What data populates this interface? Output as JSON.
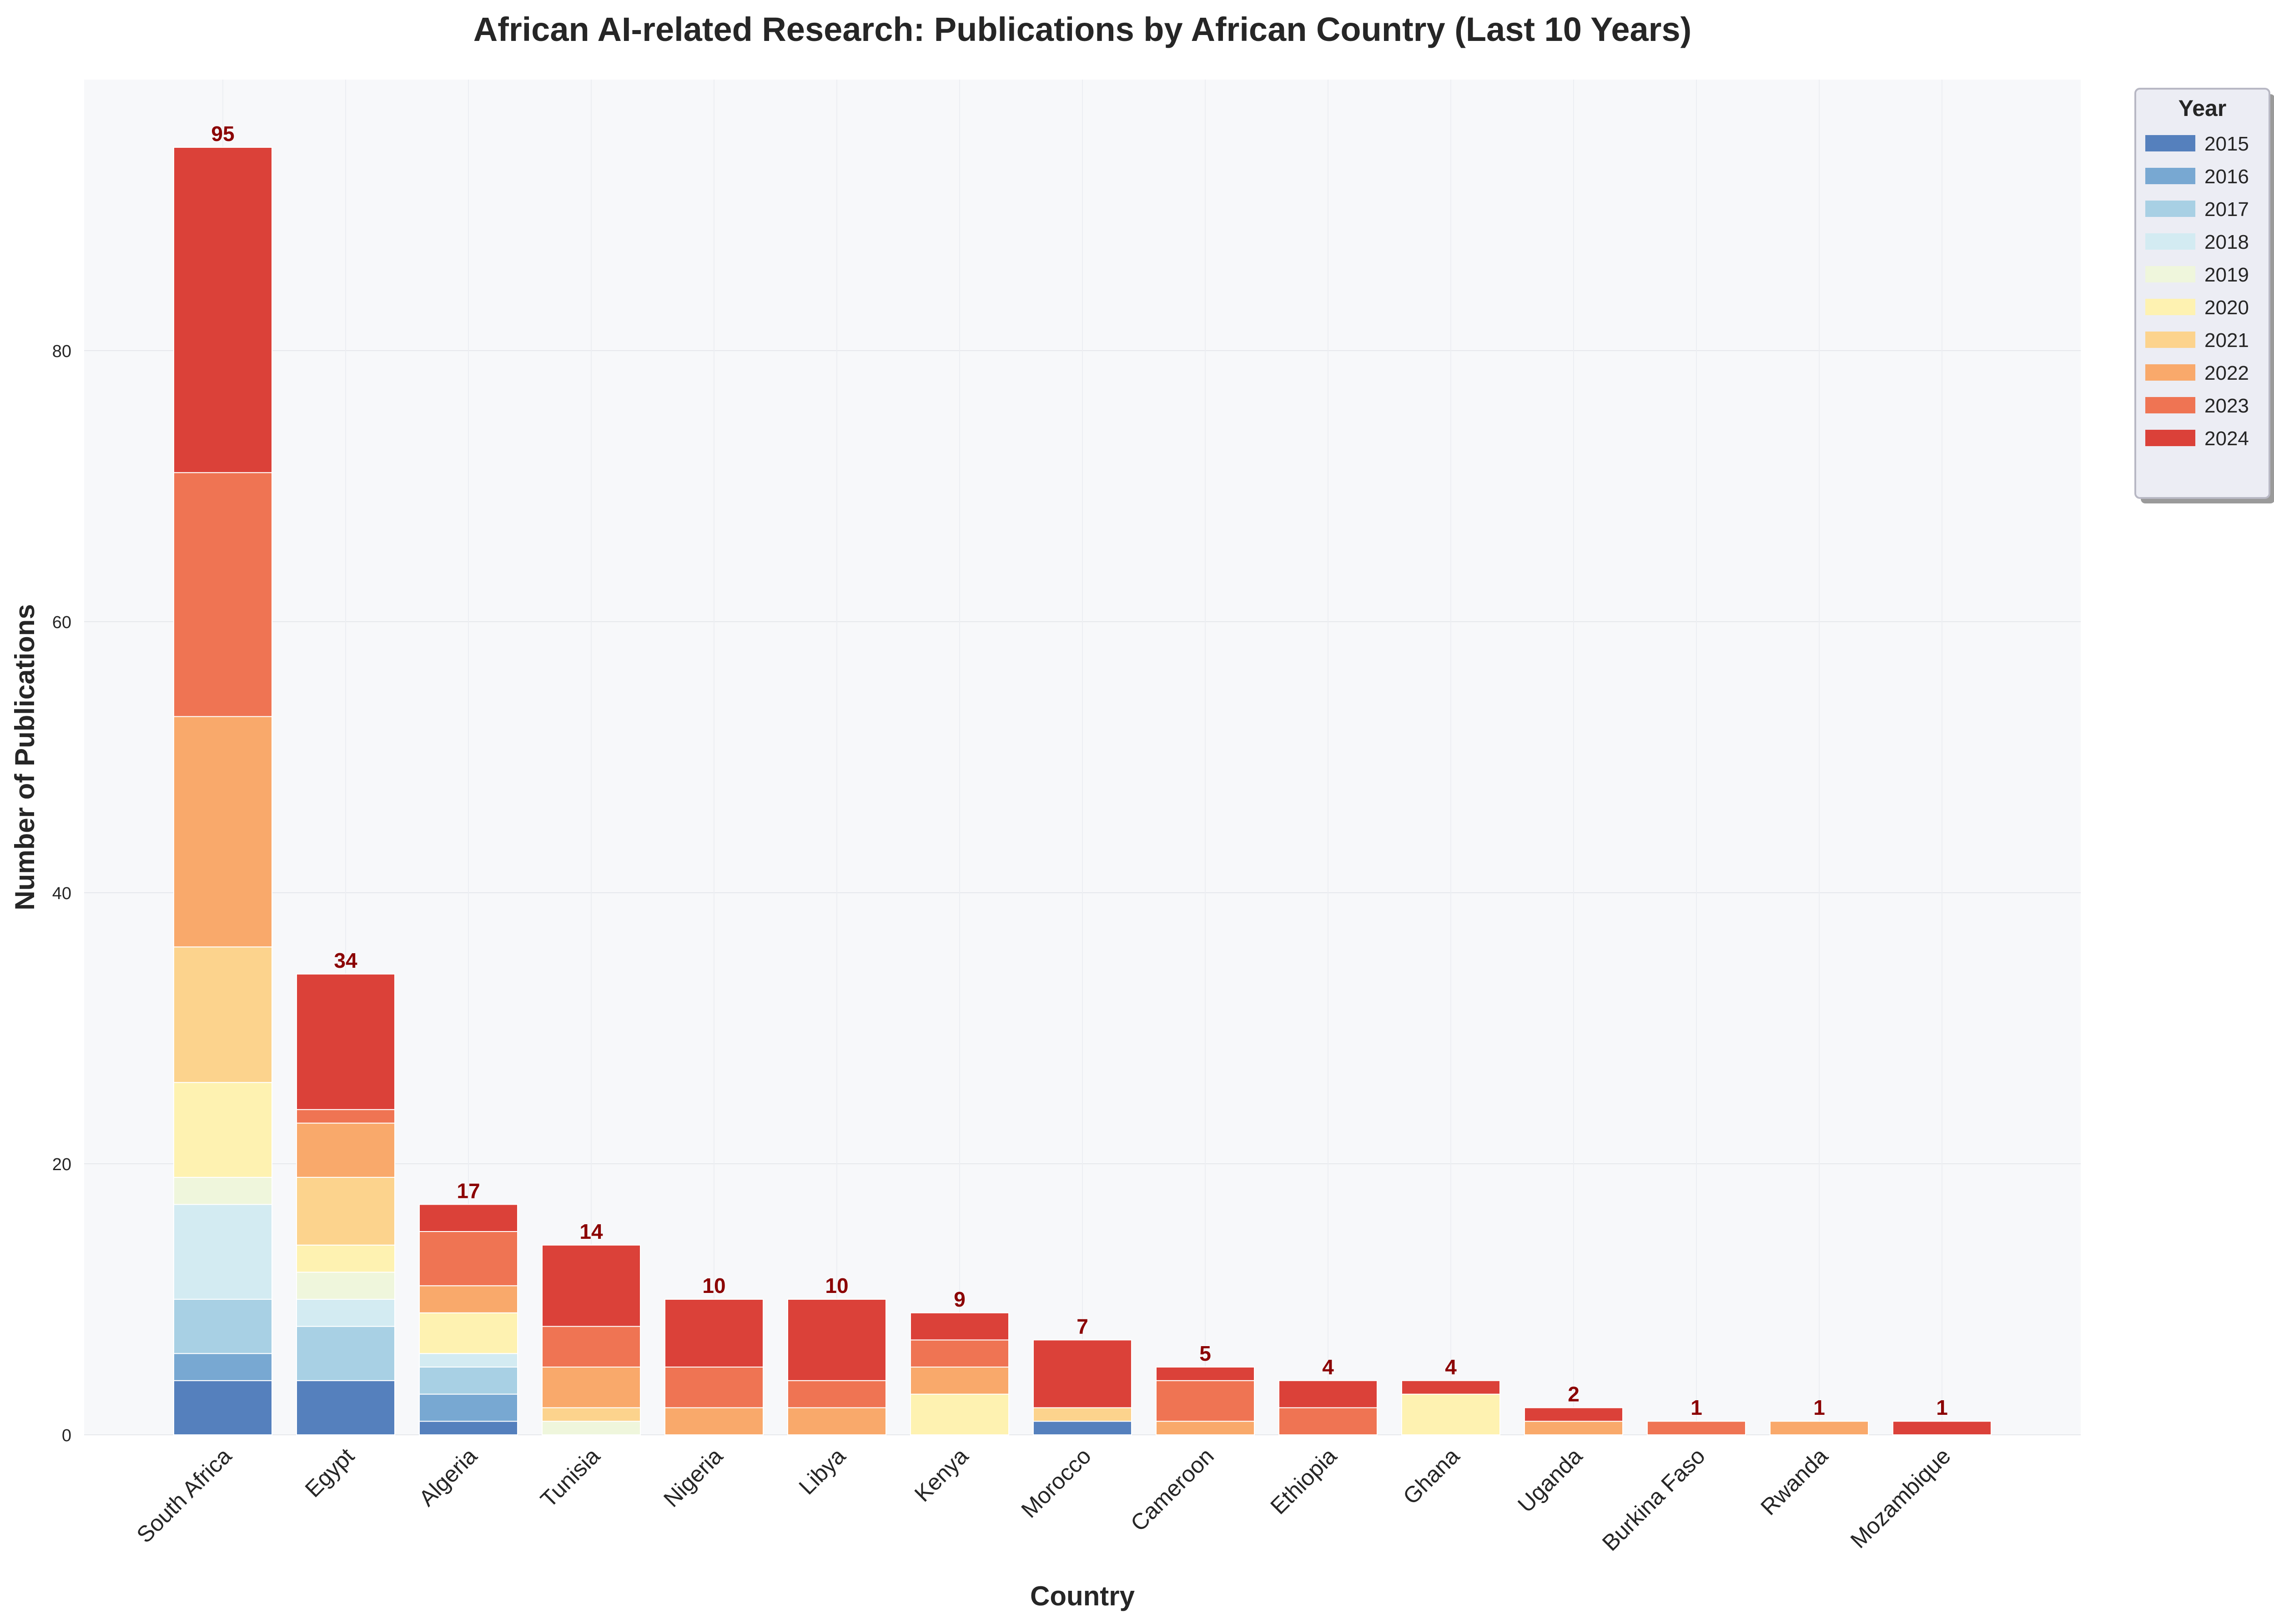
{
  "chart_data": {
    "type": "bar",
    "stacked": true,
    "title": "African AI-related Research: Publications by African Country (Last 10 Years)",
    "xlabel": "Country",
    "ylabel": "Number of Publications",
    "ylim": [
      0,
      100
    ],
    "yticks": [
      0,
      20,
      40,
      60,
      80
    ],
    "grid": true,
    "legend_title": "Year",
    "legend_position": "top-right, outside plot",
    "categories": [
      "South Africa",
      "Egypt",
      "Algeria",
      "Tunisia",
      "Nigeria",
      "Libya",
      "Kenya",
      "Morocco",
      "Cameroon",
      "Ethiopia",
      "Ghana",
      "Uganda",
      "Burkina Faso",
      "Rwanda",
      "Mozambique"
    ],
    "series": [
      {
        "name": "2015",
        "color": "#5580bd",
        "values": [
          4,
          4,
          1,
          0,
          0,
          0,
          0,
          1,
          0,
          0,
          0,
          0,
          0,
          0,
          0
        ]
      },
      {
        "name": "2016",
        "color": "#78a8d2",
        "values": [
          2,
          0,
          2,
          0,
          0,
          0,
          0,
          0,
          0,
          0,
          0,
          0,
          0,
          0,
          0
        ]
      },
      {
        "name": "2017",
        "color": "#a8d0e4",
        "values": [
          4,
          4,
          2,
          0,
          0,
          0,
          0,
          0,
          0,
          0,
          0,
          0,
          0,
          0,
          0
        ]
      },
      {
        "name": "2018",
        "color": "#d3ebf2",
        "values": [
          7,
          2,
          1,
          0,
          0,
          0,
          0,
          0,
          0,
          0,
          0,
          0,
          0,
          0,
          0
        ]
      },
      {
        "name": "2019",
        "color": "#eff6dc",
        "values": [
          2,
          2,
          0,
          1,
          0,
          0,
          0,
          0,
          0,
          0,
          0,
          0,
          0,
          0,
          0
        ]
      },
      {
        "name": "2020",
        "color": "#fef2b1",
        "values": [
          7,
          2,
          3,
          0,
          0,
          0,
          3,
          0,
          0,
          0,
          3,
          0,
          0,
          0,
          0
        ]
      },
      {
        "name": "2021",
        "color": "#fcd38d",
        "values": [
          10,
          5,
          0,
          1,
          0,
          0,
          0,
          1,
          0,
          0,
          0,
          0,
          0,
          0,
          0
        ]
      },
      {
        "name": "2022",
        "color": "#f9a96b",
        "values": [
          17,
          4,
          2,
          3,
          2,
          2,
          2,
          0,
          1,
          0,
          0,
          1,
          0,
          1,
          0
        ]
      },
      {
        "name": "2023",
        "color": "#ef7453",
        "values": [
          18,
          1,
          4,
          3,
          3,
          2,
          2,
          0,
          3,
          2,
          0,
          0,
          1,
          0,
          0
        ]
      },
      {
        "name": "2024",
        "color": "#db4139",
        "values": [
          24,
          10,
          2,
          6,
          5,
          6,
          2,
          5,
          1,
          2,
          1,
          1,
          0,
          0,
          1
        ]
      }
    ],
    "totals": [
      95,
      34,
      17,
      14,
      10,
      10,
      9,
      7,
      5,
      4,
      4,
      2,
      1,
      1,
      1
    ]
  }
}
